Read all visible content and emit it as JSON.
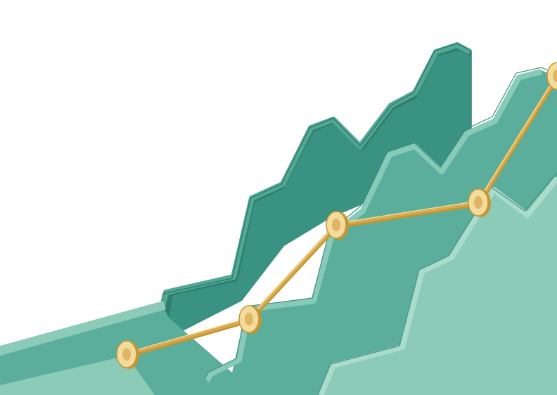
{
  "colors": {
    "background": "#ffffff",
    "back_layer": "#3a9282",
    "back_layer_top": "#52a893",
    "back_layer_dark": "#2f7f71",
    "middle_layer": "#5bae9b",
    "middle_layer_top": "#86cbb7",
    "front_layer": "#8ccbb8",
    "front_layer_top": "#a9dccb",
    "front_layer_edge": "#4f8f80",
    "line": "#d8ac4e",
    "line_highlight": "#f3dca1",
    "marker_fill": "#f3dc9b",
    "marker_center": "#e0b564",
    "marker_rim": "#c79533"
  },
  "markers_count": 5,
  "icon_names": [
    "isometric-area-layer",
    "trend-line",
    "trend-marker"
  ]
}
